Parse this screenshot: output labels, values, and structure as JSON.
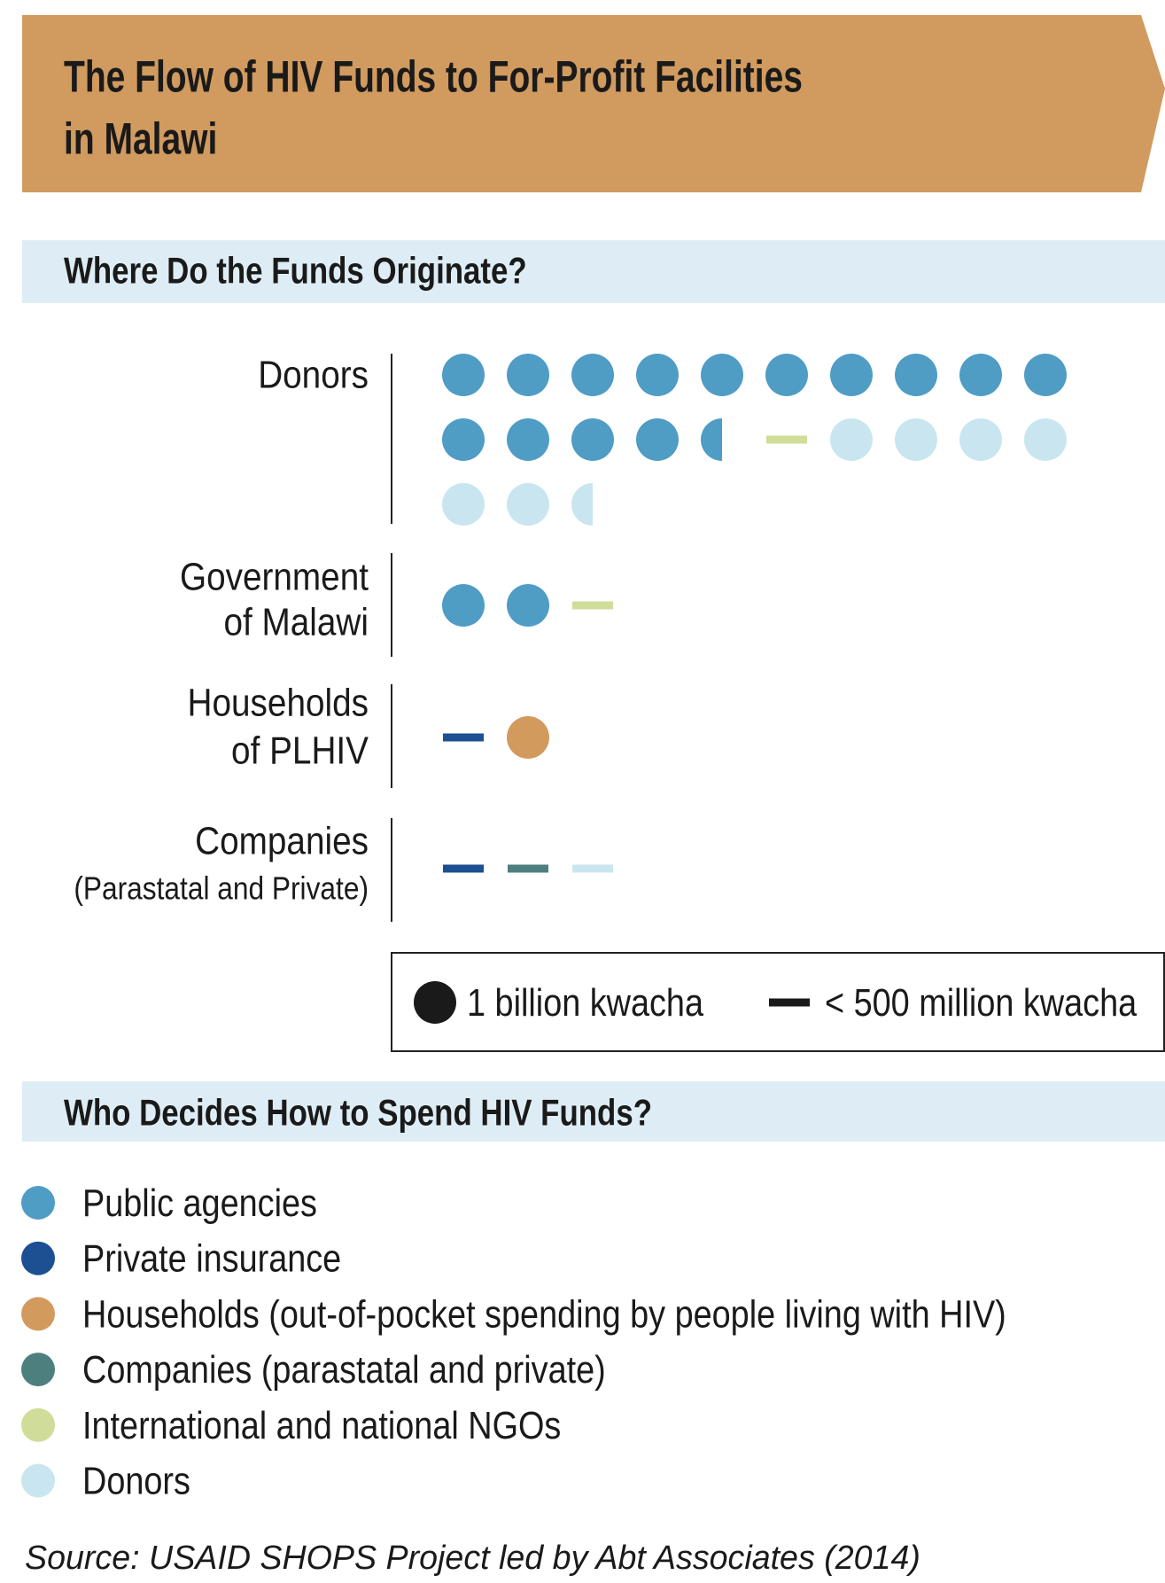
{
  "header": {
    "title_lines": [
      "The Flow of HIV Funds to For-Profit Facilities",
      "in Malawi"
    ]
  },
  "origin": {
    "heading": "Where Do the Funds Originate?",
    "sources": [
      {
        "label_lines": [
          "Donors"
        ],
        "icons": [
          {
            "shape": "dot",
            "decider": 0
          },
          {
            "shape": "dot",
            "decider": 0
          },
          {
            "shape": "dot",
            "decider": 0
          },
          {
            "shape": "dot",
            "decider": 0
          },
          {
            "shape": "dot",
            "decider": 0
          },
          {
            "shape": "dot",
            "decider": 0
          },
          {
            "shape": "dot",
            "decider": 0
          },
          {
            "shape": "dot",
            "decider": 0
          },
          {
            "shape": "dot",
            "decider": 0
          },
          {
            "shape": "dot",
            "decider": 0
          },
          {
            "shape": "dot",
            "decider": 0
          },
          {
            "shape": "dot",
            "decider": 0
          },
          {
            "shape": "dot",
            "decider": 0
          },
          {
            "shape": "dot",
            "decider": 0
          },
          {
            "shape": "half",
            "decider": 0
          },
          {
            "shape": "dash",
            "decider": 4
          },
          {
            "shape": "dot",
            "decider": 5
          },
          {
            "shape": "dot",
            "decider": 5
          },
          {
            "shape": "dot",
            "decider": 5
          },
          {
            "shape": "dot",
            "decider": 5
          },
          {
            "shape": "dot",
            "decider": 5
          },
          {
            "shape": "dot",
            "decider": 5
          },
          {
            "shape": "half",
            "decider": 5
          }
        ]
      },
      {
        "label_lines": [
          "Government",
          "of Malawi"
        ],
        "icons": [
          {
            "shape": "dot",
            "decider": 0
          },
          {
            "shape": "dot",
            "decider": 0
          },
          {
            "shape": "dash",
            "decider": 4
          }
        ]
      },
      {
        "label_lines": [
          "Households",
          "of PLHIV"
        ],
        "icons": [
          {
            "shape": "dash",
            "decider": 1
          },
          {
            "shape": "dot",
            "decider": 2
          }
        ]
      },
      {
        "label_lines": [
          "Companies",
          "(Parastatal and Private)"
        ],
        "icons": [
          {
            "shape": "dash",
            "decider": 1
          },
          {
            "shape": "dash",
            "decider": 3
          },
          {
            "shape": "dash",
            "decider": 5
          }
        ]
      }
    ]
  },
  "key": [
    {
      "shape": "dot",
      "label": "1 billion kwacha"
    },
    {
      "shape": "dash",
      "label": "< 500 million kwacha"
    }
  ],
  "deciders": {
    "heading": "Who Decides How to Spend HIV Funds?",
    "items": [
      {
        "label": "Public agencies",
        "color": "#4f9cc5"
      },
      {
        "label": "Private insurance",
        "color": "#1d4f93"
      },
      {
        "label": "Households (out-of-pocket spending by people living with HIV)",
        "color": "#d39a5e"
      },
      {
        "label": "Companies (parastatal and private)",
        "color": "#4e7f7f"
      },
      {
        "label": "International and national NGOs",
        "color": "#cfdd99"
      },
      {
        "label": "Donors",
        "color": "#c9e6f0"
      }
    ]
  },
  "source": "Source: USAID SHOPS Project led by Abt Associates (2014)"
}
